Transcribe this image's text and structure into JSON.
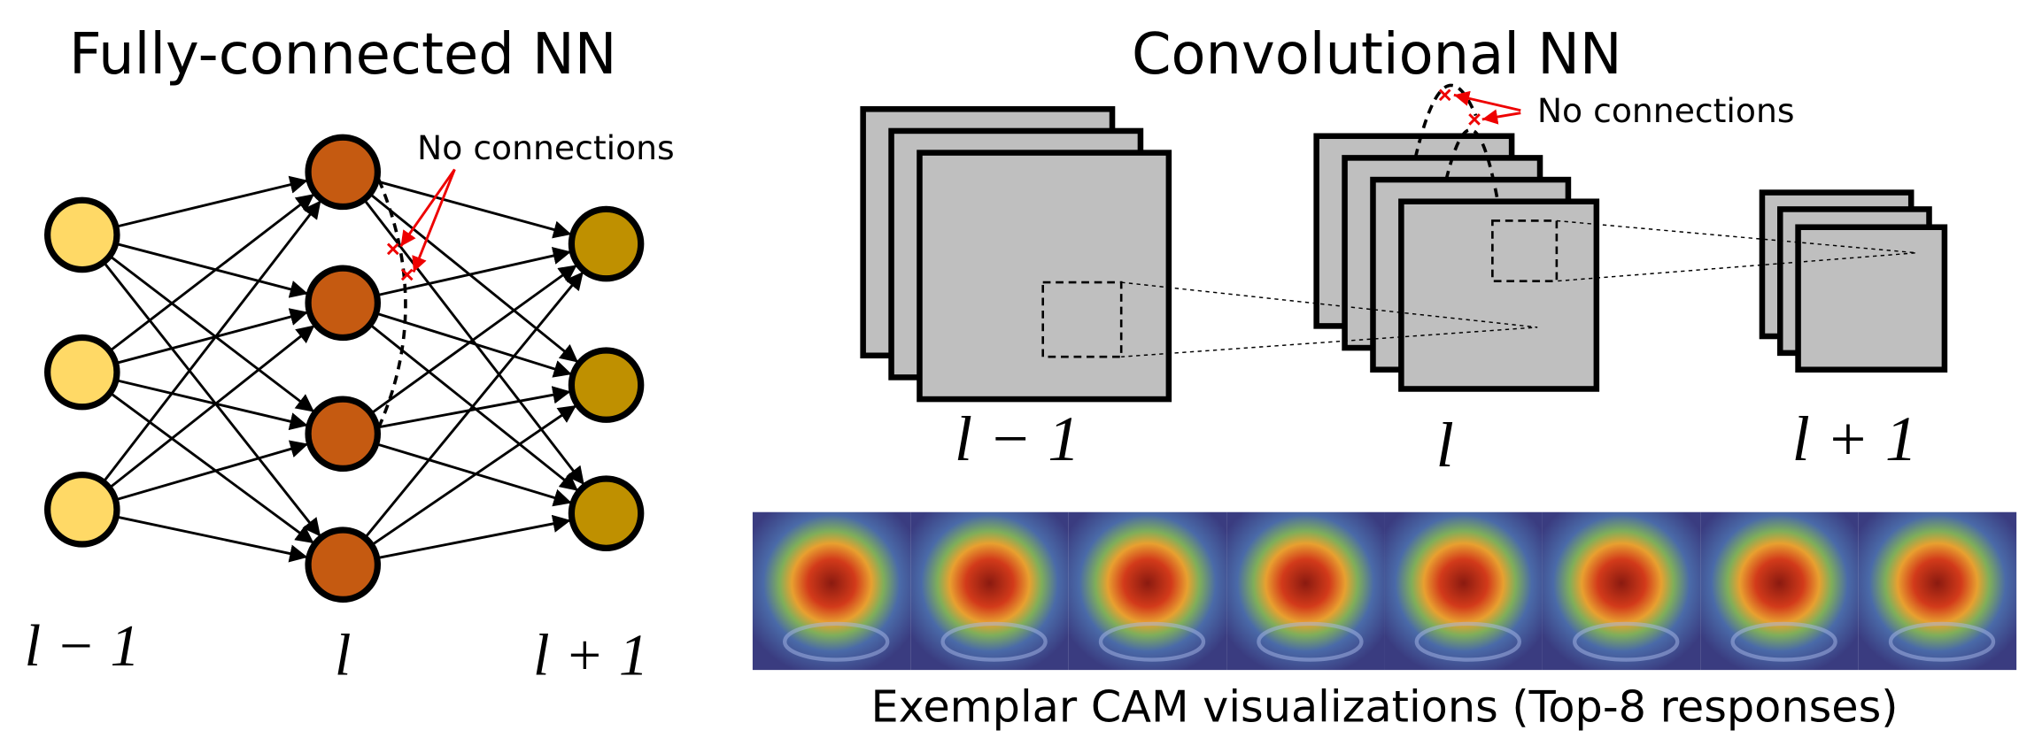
{
  "fully_connected": {
    "title": "Fully-connected NN",
    "annotation": "No connections",
    "layers": [
      "l − 1",
      "l",
      "l + 1"
    ]
  },
  "convolutional": {
    "title": "Convolutional NN",
    "annotation": "No connections",
    "layers": [
      "l − 1",
      "l",
      "l + 1"
    ]
  },
  "cam": {
    "caption": "Exemplar CAM visualizations (Top-8 responses)"
  }
}
